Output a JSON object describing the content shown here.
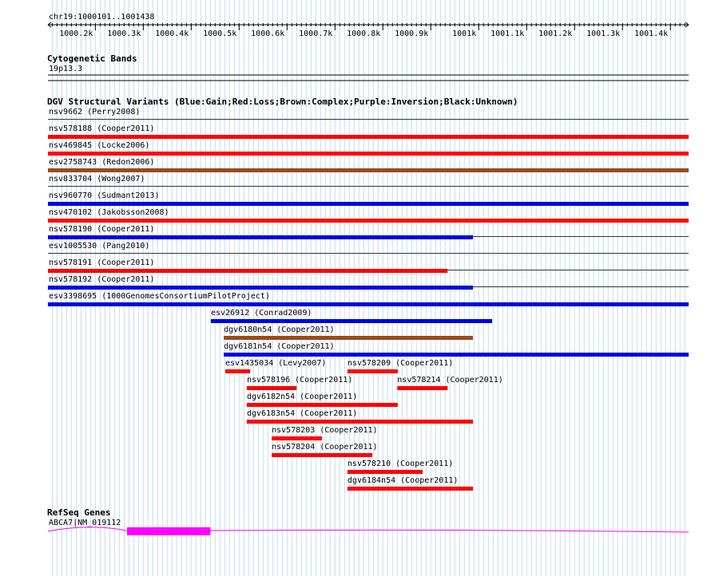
{
  "region": {
    "label": "chr19:1000101..1001438",
    "start": 1000101,
    "end": 1001438
  },
  "ruler": {
    "ticks": [
      {
        "pos": 1000200,
        "label": "1000.2k"
      },
      {
        "pos": 1000300,
        "label": "1000.3k"
      },
      {
        "pos": 1000400,
        "label": "1000.4k"
      },
      {
        "pos": 1000500,
        "label": "1000.5k"
      },
      {
        "pos": 1000600,
        "label": "1000.6k"
      },
      {
        "pos": 1000700,
        "label": "1000.7k"
      },
      {
        "pos": 1000800,
        "label": "1000.8k"
      },
      {
        "pos": 1000900,
        "label": "1000.9k"
      },
      {
        "pos": 1001000,
        "label": "1001k"
      },
      {
        "pos": 1001100,
        "label": "1001.1k"
      },
      {
        "pos": 1001200,
        "label": "1001.2k"
      },
      {
        "pos": 1001300,
        "label": "1001.3k"
      },
      {
        "pos": 1001400,
        "label": "1001.4k"
      }
    ]
  },
  "cytoband": {
    "title": "Cytogenetic Bands",
    "band": "19p13.3"
  },
  "dgv": {
    "title": "DGV Structural Variants (Blue:Gain;Red:Loss;Brown:Complex;Purple:Inversion;Black:Unknown)",
    "colors": {
      "gain": "#0000dd",
      "loss": "#ff0000",
      "complex": "#9b4a1c"
    },
    "variants": [
      {
        "label": "nsv9662 (Perry2008)",
        "type": "none",
        "start": 1000101,
        "end": 1001438,
        "row": 0
      },
      {
        "label": "nsv578188 (Cooper2011)",
        "type": "loss",
        "start": 1000101,
        "end": 1001438,
        "row": 1
      },
      {
        "label": "nsv469845 (Locke2006)",
        "type": "loss",
        "start": 1000101,
        "end": 1001438,
        "row": 2
      },
      {
        "label": "esv2758743 (Redon2006)",
        "type": "complex",
        "start": 1000101,
        "end": 1001438,
        "row": 3
      },
      {
        "label": "nsv833704 (Wong2007)",
        "type": "none",
        "start": 1000101,
        "end": 1001438,
        "row": 4
      },
      {
        "label": "nsv960770 (Sudmant2013)",
        "type": "gain",
        "start": 1000101,
        "end": 1001438,
        "row": 5
      },
      {
        "label": "nsv470102 (Jakobsson2008)",
        "type": "loss",
        "start": 1000101,
        "end": 1001438,
        "row": 6
      },
      {
        "label": "nsv578190 (Cooper2011)",
        "type": "gain",
        "start": 1000101,
        "end": 1000988,
        "row": 7
      },
      {
        "label": "esv1005530 (Pang2010)",
        "type": "none",
        "start": 1000101,
        "end": 1001438,
        "row": 8
      },
      {
        "label": "nsv578191 (Cooper2011)",
        "type": "loss",
        "start": 1000101,
        "end": 1000935,
        "row": 9
      },
      {
        "label": "nsv578192 (Cooper2011)",
        "type": "gain",
        "start": 1000101,
        "end": 1000988,
        "row": 10
      },
      {
        "label": "esv3398695 (1000GenomesConsortiumPilotProject)",
        "type": "gain",
        "start": 1000101,
        "end": 1001438,
        "row": 11
      },
      {
        "label": "esv26912 (Conrad2009)",
        "type": "gain",
        "start": 1000441,
        "end": 1001028,
        "row": 12
      },
      {
        "label": "dgv6180n54 (Cooper2011)",
        "type": "complex",
        "start": 1000468,
        "end": 1000988,
        "row": 13
      },
      {
        "label": "dgv6181n54 (Cooper2011)",
        "type": "gain",
        "start": 1000468,
        "end": 1001438,
        "row": 14
      },
      {
        "label": "esv1435034 (Levy2007)",
        "type": "loss",
        "start": 1000471,
        "end": 1000523,
        "row": 15
      },
      {
        "label": "nsv578209 (Cooper2011)",
        "type": "loss",
        "start": 1000726,
        "end": 1000831,
        "row": 15
      },
      {
        "label": "nsv578196 (Cooper2011)",
        "type": "loss",
        "start": 1000516,
        "end": 1000620,
        "row": 16
      },
      {
        "label": "nsv578214 (Cooper2011)",
        "type": "loss",
        "start": 1000830,
        "end": 1000935,
        "row": 16
      },
      {
        "label": "dgv6182n54 (Cooper2011)",
        "type": "loss",
        "start": 1000516,
        "end": 1000831,
        "row": 17
      },
      {
        "label": "dgv6183n54 (Cooper2011)",
        "type": "loss",
        "start": 1000516,
        "end": 1000988,
        "row": 18
      },
      {
        "label": "nsv578203 (Cooper2011)",
        "type": "loss",
        "start": 1000568,
        "end": 1000673,
        "row": 19
      },
      {
        "label": "nsv578204 (Cooper2011)",
        "type": "loss",
        "start": 1000568,
        "end": 1000778,
        "row": 20
      },
      {
        "label": "nsv578210 (Cooper2011)",
        "type": "loss",
        "start": 1000726,
        "end": 1000883,
        "row": 21
      },
      {
        "label": "dgv6184n54 (Cooper2011)",
        "type": "loss",
        "start": 1000726,
        "end": 1000988,
        "row": 22
      }
    ]
  },
  "refseq": {
    "title": "RefSeq Genes",
    "gene_label": "ABCA7|NM_019112",
    "color": "#ff00ff",
    "exon": {
      "start": 1000266,
      "end": 1000440
    }
  }
}
